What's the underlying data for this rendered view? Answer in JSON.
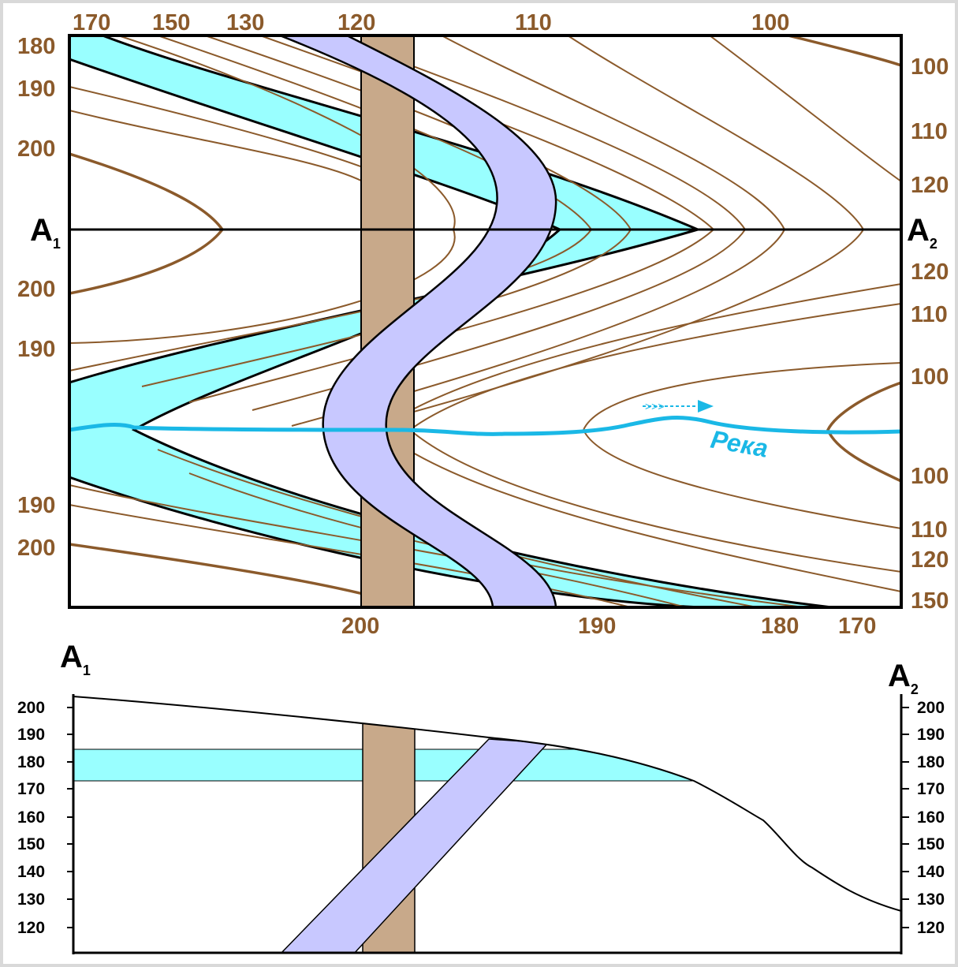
{
  "map": {
    "section_start": {
      "letter": "A",
      "index": "1"
    },
    "section_end": {
      "letter": "A",
      "index": "2"
    },
    "river_label": "Река",
    "top_axis_labels": [
      "170",
      "150",
      "130",
      "120",
      "110",
      "100"
    ],
    "bottom_axis_labels": [
      "200",
      "190",
      "180",
      "170"
    ],
    "left_axis_labels": [
      "180",
      "190",
      "200",
      "200",
      "190",
      "190",
      "200"
    ],
    "right_axis_labels": [
      "100",
      "110",
      "120",
      "120",
      "110",
      "100",
      "100",
      "110",
      "120",
      "150"
    ]
  },
  "profile": {
    "left_ticks": [
      "200",
      "190",
      "180",
      "170",
      "160",
      "150",
      "140",
      "130",
      "120"
    ],
    "right_ticks": [
      "200",
      "190",
      "180",
      "170",
      "160",
      "150",
      "140",
      "130",
      "120"
    ]
  },
  "colors": {
    "contour": "#8b5a2b",
    "aquifer_layer": "#99ffff",
    "dike_brown": "#c8a98a",
    "dike_lavender": "#c8c8ff",
    "river": "#1ab8e6",
    "frame_border": "#d9d9d9"
  }
}
